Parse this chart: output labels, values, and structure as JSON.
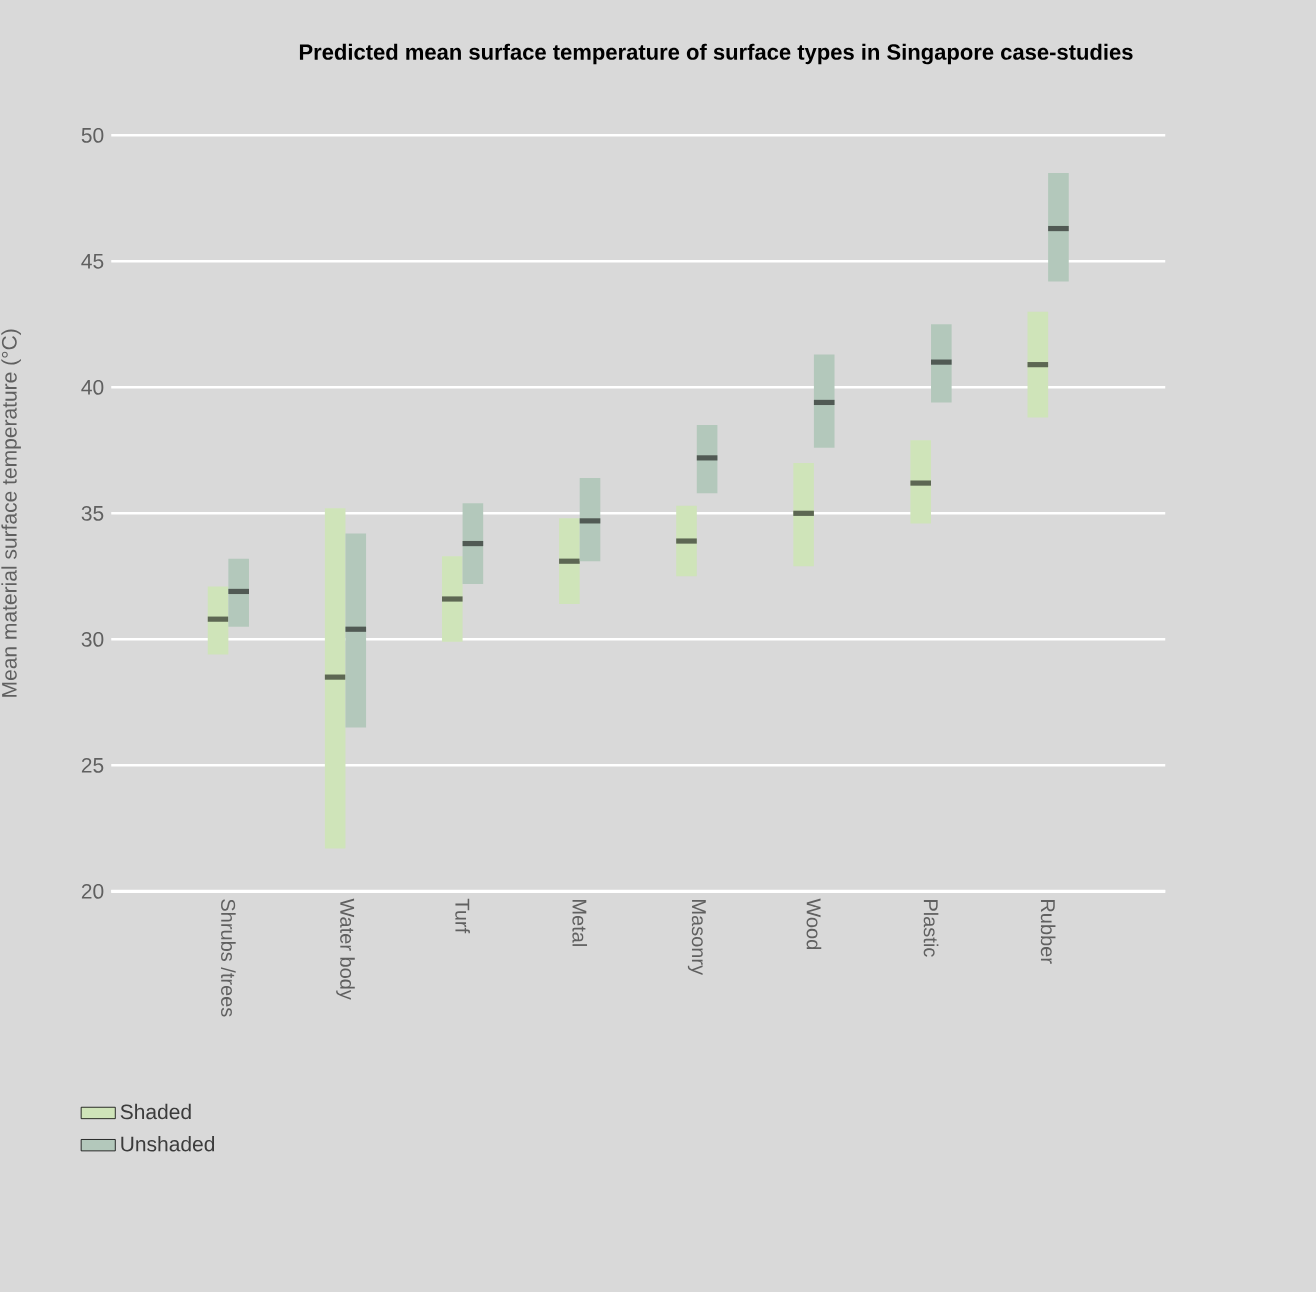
{
  "chart_data": {
    "type": "box",
    "title": "Predicted mean surface temperature of surface types in Singapore case-studies",
    "ylabel": "Mean material surface temperature (°C)",
    "categories": [
      "Shrubs /trees",
      "Water body",
      "Turf",
      "Metal",
      "Masonry",
      "Wood",
      "Plastic",
      "Rubber"
    ],
    "ylim": [
      20,
      50
    ],
    "yticks": [
      20,
      25,
      30,
      35,
      40,
      45,
      50
    ],
    "grid": "y",
    "legend": "bottom left",
    "series": [
      {
        "name": "Shaded",
        "color": "#cfe4b9",
        "boxes": [
          {
            "low": 29.4,
            "q1": 29.4,
            "median": 30.8,
            "q3": 32.1,
            "high": 32.1
          },
          {
            "low": 21.7,
            "q1": 21.7,
            "median": 28.5,
            "q3": 35.2,
            "high": 35.2
          },
          {
            "low": 29.9,
            "q1": 29.9,
            "median": 31.6,
            "q3": 33.3,
            "high": 33.3
          },
          {
            "low": 31.4,
            "q1": 31.4,
            "median": 33.1,
            "q3": 34.8,
            "high": 34.8
          },
          {
            "low": 32.5,
            "q1": 32.5,
            "median": 33.9,
            "q3": 35.3,
            "high": 35.3
          },
          {
            "low": 32.9,
            "q1": 32.9,
            "median": 35.0,
            "q3": 37.0,
            "high": 37.0
          },
          {
            "low": 34.6,
            "q1": 34.6,
            "median": 36.2,
            "q3": 37.9,
            "high": 37.9
          },
          {
            "low": 38.8,
            "q1": 38.8,
            "median": 40.9,
            "q3": 43.0,
            "high": 43.0
          }
        ]
      },
      {
        "name": "Unshaded",
        "color": "#b3c8bb",
        "boxes": [
          {
            "low": 30.5,
            "q1": 30.5,
            "median": 31.9,
            "q3": 33.2,
            "high": 33.2
          },
          {
            "low": 26.5,
            "q1": 26.5,
            "median": 30.4,
            "q3": 34.2,
            "high": 34.2
          },
          {
            "low": 32.2,
            "q1": 32.2,
            "median": 33.8,
            "q3": 35.4,
            "high": 35.4
          },
          {
            "low": 33.1,
            "q1": 33.1,
            "median": 34.7,
            "q3": 36.4,
            "high": 36.4
          },
          {
            "low": 35.8,
            "q1": 35.8,
            "median": 37.2,
            "q3": 38.5,
            "high": 38.5
          },
          {
            "low": 37.6,
            "q1": 37.6,
            "median": 39.4,
            "q3": 41.3,
            "high": 41.3
          },
          {
            "low": 39.4,
            "q1": 39.4,
            "median": 41.0,
            "q3": 42.5,
            "high": 42.5
          },
          {
            "low": 44.2,
            "q1": 44.2,
            "median": 46.3,
            "q3": 48.5,
            "high": 48.5
          }
        ]
      }
    ]
  }
}
